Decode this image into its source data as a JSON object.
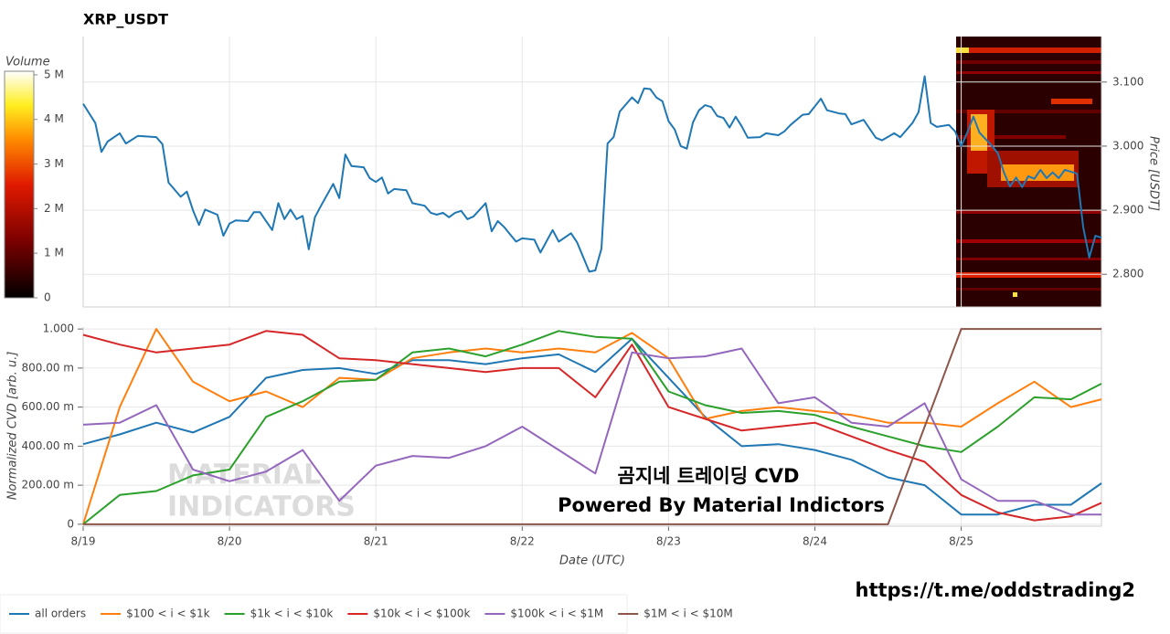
{
  "title": "XRP_USDT",
  "colorbar": {
    "label": "Volume",
    "range": [
      0,
      5080000
    ],
    "ticks": [
      0,
      {
        "value": 1000000,
        "label": "1 M"
      },
      {
        "value": 2000000,
        "label": "2 M"
      },
      {
        "value": 3000000,
        "label": "3 M"
      },
      {
        "value": 4000000,
        "label": "4 M"
      },
      {
        "value": 5000000,
        "label": "5 M"
      }
    ]
  },
  "chart_data": [
    {
      "type": "line",
      "ylabel": "Price [USDT]",
      "color": "#1f77b4",
      "grid": true,
      "x": [
        0,
        2,
        3,
        4,
        6,
        7,
        9,
        12,
        13,
        14,
        16,
        17,
        18,
        19,
        20,
        22,
        23,
        24,
        25,
        27,
        28,
        29,
        31,
        32,
        33,
        34,
        35,
        36,
        37,
        38,
        39,
        41,
        42,
        43,
        44,
        46,
        47,
        48,
        49,
        50,
        51,
        53,
        54,
        56,
        57,
        58,
        59,
        60,
        61,
        62,
        63,
        64,
        66,
        67,
        68,
        69,
        71,
        72,
        74,
        75,
        77,
        78,
        80,
        81,
        83,
        84,
        85,
        86,
        87,
        88,
        90,
        91,
        92,
        93,
        94,
        95,
        96,
        97,
        98,
        99,
        100,
        101,
        102,
        103,
        104,
        105,
        106,
        107,
        108,
        109,
        111,
        112,
        114,
        115,
        116,
        118,
        119,
        121,
        122,
        124,
        125,
        126,
        128,
        130,
        131,
        133,
        134,
        136,
        137,
        138,
        139,
        140,
        142,
        143,
        144,
        145,
        146,
        147,
        149,
        150,
        151,
        152,
        153,
        154,
        155,
        156,
        157,
        158,
        159,
        160,
        161,
        163,
        164,
        165,
        166,
        167
      ],
      "values": [
        3.066,
        3.036,
        2.991,
        3.007,
        3.02,
        3.004,
        3.016,
        3.014,
        3.003,
        2.943,
        2.921,
        2.929,
        2.9,
        2.877,
        2.901,
        2.893,
        2.86,
        2.879,
        2.884,
        2.883,
        2.897,
        2.897,
        2.869,
        2.911,
        2.886,
        2.901,
        2.886,
        2.891,
        2.839,
        2.889,
        2.907,
        2.941,
        2.919,
        2.987,
        2.969,
        2.967,
        2.95,
        2.944,
        2.951,
        2.926,
        2.933,
        2.931,
        2.911,
        2.907,
        2.896,
        2.893,
        2.896,
        2.889,
        2.896,
        2.899,
        2.886,
        2.89,
        2.911,
        2.867,
        2.883,
        2.874,
        2.851,
        2.856,
        2.854,
        2.834,
        2.869,
        2.851,
        2.864,
        2.85,
        2.804,
        2.806,
        2.84,
        3.004,
        3.014,
        3.054,
        3.076,
        3.067,
        3.09,
        3.089,
        3.076,
        3.07,
        3.039,
        3.026,
        3.0,
        2.996,
        3.037,
        3.056,
        3.064,
        3.061,
        3.047,
        3.044,
        3.029,
        3.046,
        3.031,
        3.013,
        3.014,
        3.02,
        3.017,
        3.023,
        3.033,
        3.049,
        3.05,
        3.074,
        3.056,
        3.051,
        3.05,
        3.034,
        3.041,
        3.013,
        3.009,
        3.02,
        3.014,
        3.036,
        3.053,
        3.109,
        3.036,
        3.03,
        3.033,
        3.023,
        3.0,
        3.021,
        3.046,
        3.021,
        3.001,
        2.989,
        2.959,
        2.937,
        2.951,
        2.936,
        2.953,
        2.949,
        2.963,
        2.95,
        2.959,
        2.95,
        2.963,
        2.957,
        2.874,
        2.826,
        2.86,
        2.857
      ],
      "xlim": [
        0,
        167
      ],
      "xticks": [
        0,
        24,
        48,
        72,
        96,
        120,
        144
      ],
      "ylim": [
        2.749,
        3.171
      ],
      "yticks": [
        {
          "value": 2.8,
          "label": "2.800"
        },
        {
          "value": 2.9,
          "label": "2.900"
        },
        {
          "value": 3.0,
          "label": "3.000"
        },
        {
          "value": 3.1,
          "label": "3.100"
        }
      ]
    },
    {
      "type": "line",
      "xlabel": "Date (UTC)",
      "ylabel": "Normalized CVD [arb. u.]",
      "grid": true,
      "x": [
        0,
        6,
        12,
        18,
        24,
        30,
        36,
        42,
        48,
        54,
        60,
        66,
        72,
        78,
        84,
        90,
        96,
        102,
        108,
        114,
        120,
        126,
        132,
        138,
        144,
        150,
        156,
        162,
        167
      ],
      "series": [
        {
          "name": "all orders",
          "color": "#1f77b4",
          "values": [
            0.41,
            0.46,
            0.52,
            0.47,
            0.55,
            0.75,
            0.79,
            0.8,
            0.77,
            0.84,
            0.84,
            0.82,
            0.85,
            0.87,
            0.78,
            0.95,
            0.75,
            0.55,
            0.4,
            0.41,
            0.38,
            0.33,
            0.24,
            0.2,
            0.05,
            0.05,
            0.1,
            0.1,
            0.21
          ]
        },
        {
          "name": "$100 < i < $1k",
          "color": "#ff7f0e",
          "values": [
            0.0,
            0.6,
            1.0,
            0.73,
            0.63,
            0.68,
            0.6,
            0.75,
            0.74,
            0.85,
            0.88,
            0.9,
            0.88,
            0.9,
            0.88,
            0.98,
            0.85,
            0.54,
            0.58,
            0.6,
            0.58,
            0.56,
            0.52,
            0.52,
            0.5,
            0.62,
            0.73,
            0.6,
            0.64
          ]
        },
        {
          "name": "$1k < i < $10k",
          "color": "#2ca02c",
          "values": [
            0.0,
            0.15,
            0.17,
            0.25,
            0.28,
            0.55,
            0.63,
            0.73,
            0.74,
            0.88,
            0.9,
            0.86,
            0.92,
            0.99,
            0.96,
            0.95,
            0.68,
            0.61,
            0.57,
            0.58,
            0.56,
            0.5,
            0.45,
            0.4,
            0.37,
            0.5,
            0.65,
            0.64,
            0.72
          ]
        },
        {
          "name": "$10k < i < $100k",
          "color": "#d62728",
          "values": [
            0.97,
            0.92,
            0.88,
            0.9,
            0.92,
            0.99,
            0.97,
            0.85,
            0.84,
            0.82,
            0.8,
            0.78,
            0.8,
            0.8,
            0.65,
            0.92,
            0.6,
            0.54,
            0.48,
            0.5,
            0.52,
            0.45,
            0.38,
            0.32,
            0.15,
            0.06,
            0.02,
            0.04,
            0.11
          ]
        },
        {
          "name": "$100k < i < $1M",
          "color": "#9467bd",
          "values": [
            0.51,
            0.52,
            0.61,
            0.28,
            0.22,
            0.27,
            0.38,
            0.12,
            0.3,
            0.35,
            0.34,
            0.4,
            0.5,
            0.38,
            0.26,
            0.88,
            0.85,
            0.86,
            0.9,
            0.62,
            0.65,
            0.52,
            0.5,
            0.62,
            0.23,
            0.12,
            0.12,
            0.05,
            0.05
          ]
        },
        {
          "name": "$1M < i < $10M",
          "color": "#8c564b",
          "values": [
            0,
            0,
            0,
            0,
            0,
            0,
            0,
            0,
            0,
            0,
            0,
            0,
            0,
            0,
            0,
            0,
            0,
            0,
            0,
            0,
            0,
            0,
            0,
            0.5,
            1,
            1,
            1,
            1,
            1
          ]
        }
      ],
      "xlim": [
        0,
        167
      ],
      "xticks": [
        {
          "value": 0,
          "label": "8/19"
        },
        {
          "value": 24,
          "label": "8/20"
        },
        {
          "value": 48,
          "label": "8/21"
        },
        {
          "value": 72,
          "label": "8/22"
        },
        {
          "value": 96,
          "label": "8/23"
        },
        {
          "value": 120,
          "label": "8/24"
        },
        {
          "value": 144,
          "label": "8/25"
        }
      ],
      "ylim": [
        -0.01,
        1.01
      ],
      "yticks": [
        0,
        {
          "value": 0.2,
          "label": "200.00 m"
        },
        {
          "value": 0.4,
          "label": "400.00 m"
        },
        {
          "value": 0.6,
          "label": "600.00 m"
        },
        {
          "value": 0.8,
          "label": "800.00 m"
        },
        {
          "value": 1.0,
          "label": "1.000"
        }
      ],
      "annotations": [
        "곰지네 트레이딩 CVD",
        "Powered By Material Indictors"
      ],
      "watermark": [
        "MATERIAL",
        "INDICATORS"
      ]
    }
  ],
  "footer_link": "https://t.me/oddstrading2"
}
